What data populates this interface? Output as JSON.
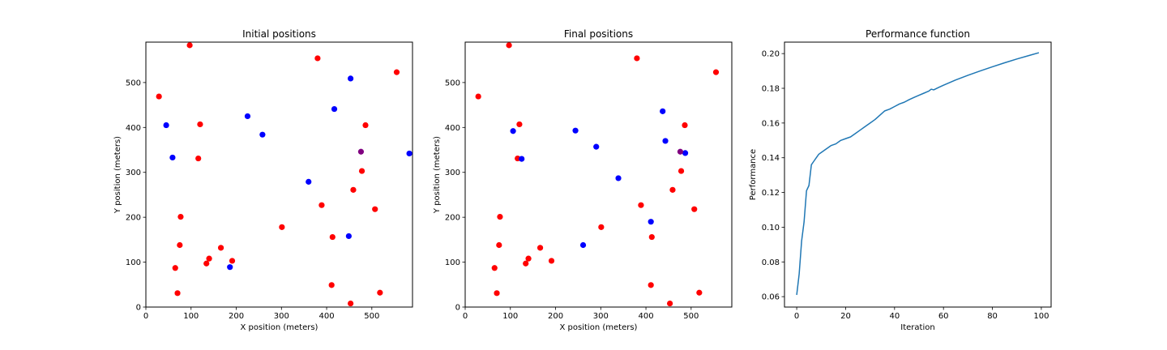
{
  "chart_data": [
    {
      "type": "scatter",
      "title": "Initial positions",
      "xlabel": "X position (meters)",
      "ylabel": "Y position (meters)",
      "xlim": [
        0,
        590
      ],
      "ylim": [
        0,
        590
      ],
      "xticks": [
        0,
        100,
        200,
        300,
        400,
        500
      ],
      "yticks": [
        0,
        100,
        200,
        300,
        400,
        500
      ],
      "grid": false,
      "colors": {
        "red": "#ff0000",
        "blue": "#0000ff",
        "purple": "#800080"
      },
      "series": [
        {
          "color": "red",
          "points": [
            [
              97,
              583
            ],
            [
              380,
              554
            ],
            [
              29,
              469
            ],
            [
              555,
              523
            ],
            [
              120,
              407
            ],
            [
              486,
              405
            ],
            [
              116,
              331
            ],
            [
              478,
              303
            ],
            [
              459,
              261
            ],
            [
              389,
              227
            ],
            [
              507,
              218
            ],
            [
              77,
              201
            ],
            [
              301,
              178
            ],
            [
              413,
              156
            ],
            [
              75,
              138
            ],
            [
              166,
              132
            ],
            [
              140,
              108
            ],
            [
              191,
              103
            ],
            [
              134,
              97
            ],
            [
              65,
              87
            ],
            [
              70,
              31
            ],
            [
              411,
              49
            ],
            [
              518,
              32
            ],
            [
              453,
              8
            ]
          ]
        },
        {
          "color": "blue",
          "points": [
            [
              453,
              509
            ],
            [
              417,
              441
            ],
            [
              225,
              425
            ],
            [
              45,
              405
            ],
            [
              258,
              384
            ],
            [
              59,
              333
            ],
            [
              583,
              342
            ],
            [
              360,
              279
            ],
            [
              449,
              158
            ],
            [
              186,
              89
            ]
          ]
        },
        {
          "color": "purple",
          "points": [
            [
              476,
              346
            ]
          ]
        }
      ]
    },
    {
      "type": "scatter",
      "title": "Final positions",
      "xlabel": "X position (meters)",
      "ylabel": "Y position (meters)",
      "xlim": [
        0,
        590
      ],
      "ylim": [
        0,
        590
      ],
      "xticks": [
        0,
        100,
        200,
        300,
        400,
        500
      ],
      "yticks": [
        0,
        100,
        200,
        300,
        400,
        500
      ],
      "grid": false,
      "colors": {
        "red": "#ff0000",
        "blue": "#0000ff",
        "purple": "#800080"
      },
      "series": [
        {
          "color": "red",
          "points": [
            [
              97,
              583
            ],
            [
              380,
              554
            ],
            [
              29,
              469
            ],
            [
              555,
              523
            ],
            [
              120,
              407
            ],
            [
              486,
              405
            ],
            [
              116,
              331
            ],
            [
              478,
              303
            ],
            [
              459,
              261
            ],
            [
              389,
              227
            ],
            [
              507,
              218
            ],
            [
              77,
              201
            ],
            [
              301,
              178
            ],
            [
              413,
              156
            ],
            [
              75,
              138
            ],
            [
              166,
              132
            ],
            [
              140,
              108
            ],
            [
              191,
              103
            ],
            [
              134,
              97
            ],
            [
              65,
              87
            ],
            [
              70,
              31
            ],
            [
              411,
              49
            ],
            [
              518,
              32
            ],
            [
              453,
              8
            ]
          ]
        },
        {
          "color": "blue",
          "points": [
            [
              437,
              436
            ],
            [
              244,
              393
            ],
            [
              106,
              392
            ],
            [
              290,
              357
            ],
            [
              443,
              370
            ],
            [
              487,
              343
            ],
            [
              125,
              330
            ],
            [
              339,
              287
            ],
            [
              411,
              190
            ],
            [
              261,
              138
            ]
          ]
        },
        {
          "color": "purple",
          "points": [
            [
              476,
              346
            ]
          ]
        }
      ]
    },
    {
      "type": "line",
      "title": "Performance function",
      "xlabel": "Iteration",
      "ylabel": "Performance",
      "xlim": [
        -5,
        104
      ],
      "ylim": [
        0.054,
        0.2066
      ],
      "xticks": [
        0,
        20,
        40,
        60,
        80,
        100
      ],
      "yticks": [
        0.06,
        0.08,
        0.1,
        0.12,
        0.14,
        0.16,
        0.18,
        0.2
      ],
      "ytick_labels": [
        "0.06",
        "0.08",
        "0.10",
        "0.12",
        "0.14",
        "0.16",
        "0.18",
        "0.20"
      ],
      "grid": false,
      "colors": {
        "line": "#1f77b4"
      },
      "series": [
        {
          "x": [
            0,
            1,
            2,
            3,
            4,
            5,
            6,
            7,
            8,
            9,
            10,
            12,
            14,
            16,
            18,
            20,
            22,
            24,
            26,
            28,
            30,
            32,
            34,
            36,
            38,
            40,
            42,
            44,
            46,
            48,
            50,
            52,
            54,
            55,
            56,
            58,
            60,
            65,
            70,
            75,
            80,
            85,
            90,
            95,
            99
          ],
          "y": [
            0.061,
            0.073,
            0.092,
            0.103,
            0.121,
            0.124,
            0.136,
            0.138,
            0.14,
            0.142,
            0.143,
            0.145,
            0.147,
            0.148,
            0.15,
            0.151,
            0.152,
            0.154,
            0.156,
            0.158,
            0.16,
            0.162,
            0.1645,
            0.167,
            0.168,
            0.1695,
            0.171,
            0.172,
            0.1735,
            0.1748,
            0.176,
            0.1772,
            0.1784,
            0.1795,
            0.1791,
            0.1805,
            0.1818,
            0.1848,
            0.1875,
            0.19,
            0.1924,
            0.1947,
            0.1969,
            0.1989,
            0.2005
          ]
        }
      ]
    }
  ]
}
